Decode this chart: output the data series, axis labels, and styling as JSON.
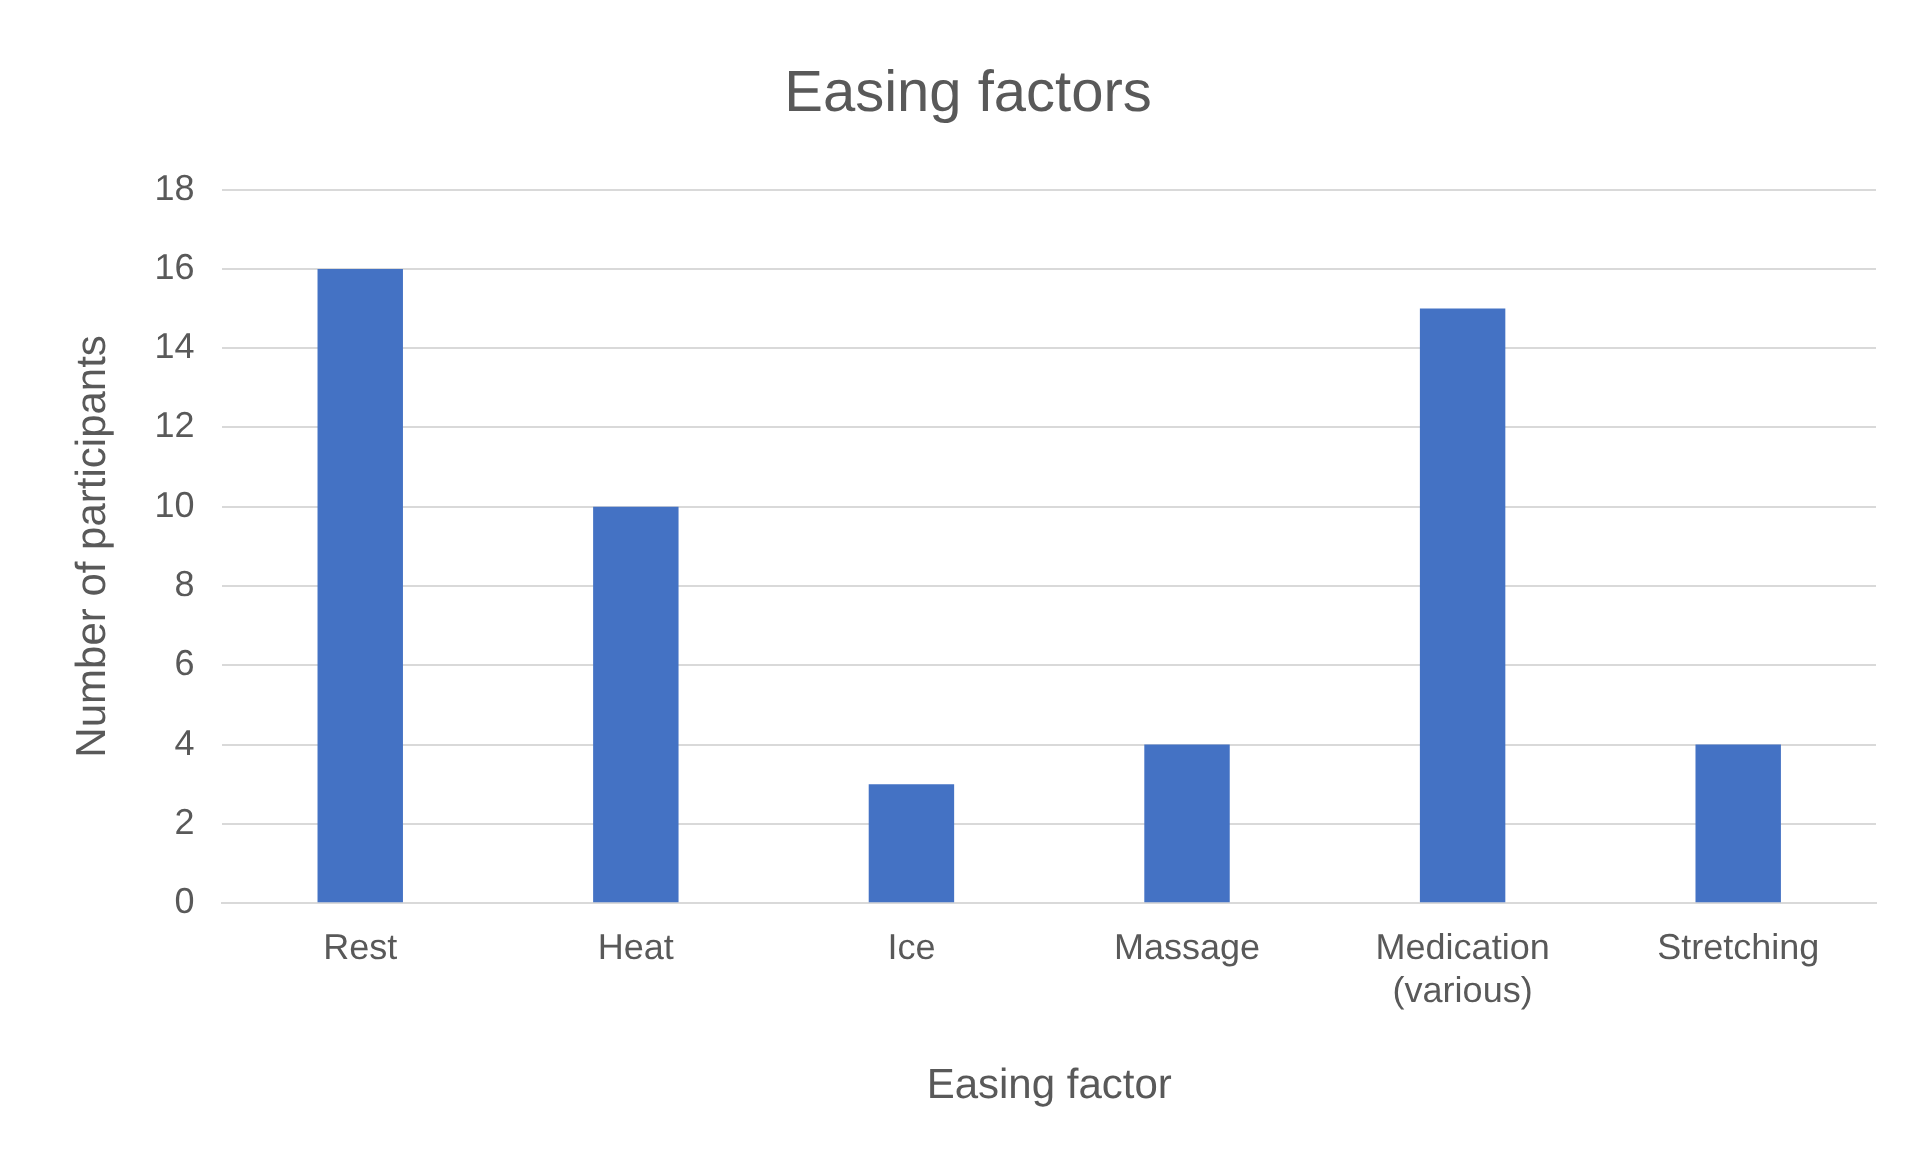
{
  "chart_data": {
    "type": "bar",
    "title": "Easing factors",
    "xlabel": "Easing factor",
    "ylabel": "Number of participants",
    "categories": [
      "Rest",
      "Heat",
      "Ice",
      "Massage",
      "Medication (various)",
      "Stretching"
    ],
    "values": [
      16,
      10,
      3,
      4,
      15,
      4
    ],
    "color": "#4472c4",
    "ylim": [
      0,
      18
    ],
    "yticks": [
      0,
      2,
      4,
      6,
      8,
      10,
      12,
      14,
      16,
      18
    ],
    "grid": "y",
    "legend": false
  }
}
